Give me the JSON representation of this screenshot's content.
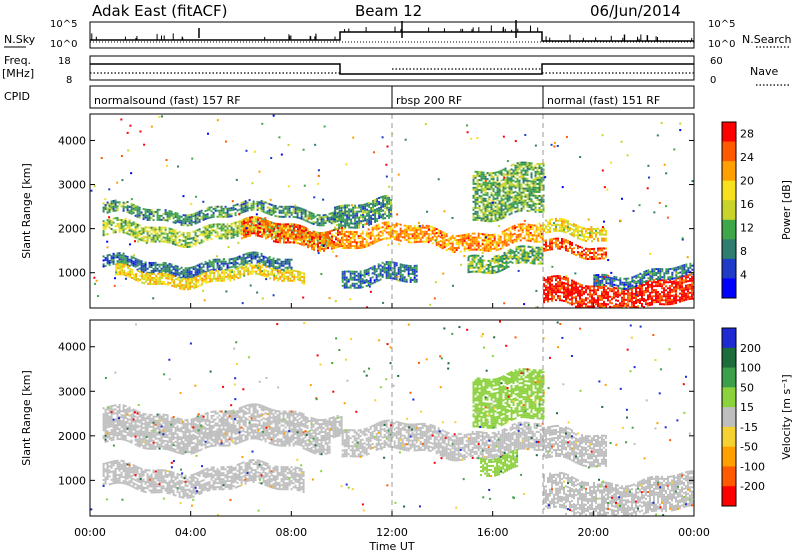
{
  "header": {
    "station": "Adak East (fitACF)",
    "beam": "Beam 12",
    "date": "06/Jun/2014"
  },
  "strip_labels": {
    "nsky": "N.Sky",
    "nsearch": "N.Search",
    "freq": "Freq.",
    "freq_unit": "[MHz]",
    "nave": "Nave",
    "cpid": "CPID"
  },
  "strip_ticks": {
    "noise_left": [
      "10^5",
      "10^0"
    ],
    "noise_right": [
      "10^5",
      "10^0"
    ],
    "freq_left": [
      "18",
      "8"
    ],
    "nave_right": [
      "60",
      "0"
    ]
  },
  "modes": [
    {
      "label": "normalsound (fast) 157 RF",
      "start_hour": 0,
      "end_hour": 12
    },
    {
      "label": "rbsp 200 RF",
      "start_hour": 12,
      "end_hour": 18
    },
    {
      "label": "normal (fast) 151 RF",
      "start_hour": 18,
      "end_hour": 24
    }
  ],
  "chart_data": [
    {
      "type": "heatmap",
      "name": "power",
      "ylabel": "Slant Range [km]",
      "xlabel": "Time UT",
      "xlim": [
        0,
        24
      ],
      "ylim": [
        200,
        4600
      ],
      "x_ticks": [
        "00:00",
        "04:00",
        "08:00",
        "12:00",
        "16:00",
        "20:00",
        "00:00"
      ],
      "y_ticks": [
        1000,
        2000,
        3000,
        4000
      ],
      "colorbar": {
        "label": "Power [dB]",
        "ticks": [
          4,
          8,
          12,
          16,
          20,
          24,
          28
        ],
        "range": [
          0,
          30
        ],
        "colors": [
          "#0000ff",
          "#1e3cc8",
          "#2e7d6e",
          "#3fa64a",
          "#c8d42a",
          "#f7e01e",
          "#ffa000",
          "#ff5a00",
          "#ff0000"
        ]
      },
      "echo_bands": [
        {
          "t0": 0.5,
          "t1": 10.0,
          "r0": 2250,
          "r1": 2500,
          "power": 10
        },
        {
          "t0": 0.5,
          "t1": 9.5,
          "r0": 1750,
          "r1": 2100,
          "power": 14
        },
        {
          "t0": 6.0,
          "t1": 10.0,
          "r0": 1650,
          "r1": 2100,
          "power": 24
        },
        {
          "t0": 0.5,
          "t1": 8.0,
          "r0": 1050,
          "r1": 1300,
          "power": 8
        },
        {
          "t0": 1.0,
          "t1": 8.5,
          "r0": 800,
          "r1": 1050,
          "power": 18
        },
        {
          "t0": 9.7,
          "t1": 12.0,
          "r0": 2100,
          "r1": 2600,
          "power": 10
        },
        {
          "t0": 10.0,
          "t1": 18.0,
          "r0": 1600,
          "r1": 2000,
          "power": 22
        },
        {
          "t0": 10.0,
          "t1": 13.0,
          "r0": 700,
          "r1": 1100,
          "power": 8
        },
        {
          "t0": 15.0,
          "t1": 18.0,
          "r0": 1100,
          "r1": 1500,
          "power": 12
        },
        {
          "t0": 15.2,
          "t1": 18.0,
          "r0": 2300,
          "r1": 3400,
          "power": 12
        },
        {
          "t0": 18.0,
          "t1": 20.5,
          "r0": 1800,
          "r1": 2100,
          "power": 18
        },
        {
          "t0": 18.0,
          "t1": 20.5,
          "r0": 1400,
          "r1": 1650,
          "power": 26
        },
        {
          "t0": 18.0,
          "t1": 24.0,
          "r0": 250,
          "r1": 800,
          "power": 28
        },
        {
          "t0": 20.0,
          "t1": 24.0,
          "r0": 800,
          "r1": 1050,
          "power": 8
        }
      ]
    },
    {
      "type": "heatmap",
      "name": "velocity",
      "ylabel": "Slant Range [km]",
      "xlabel": "Time UT",
      "xlim": [
        0,
        24
      ],
      "ylim": [
        200,
        4600
      ],
      "x_ticks": [
        "00:00",
        "04:00",
        "08:00",
        "12:00",
        "16:00",
        "20:00",
        "00:00"
      ],
      "y_ticks": [
        1000,
        2000,
        3000,
        4000
      ],
      "colorbar": {
        "label": "Velocity [m s⁻¹]",
        "ticks": [
          200,
          100,
          50,
          15,
          -15,
          -50,
          -100,
          -200
        ],
        "colors": [
          "#1e2ad2",
          "#1e6b3c",
          "#3ca04a",
          "#8cd23c",
          "#bebebe",
          "#f5d232",
          "#ffa000",
          "#ff5a00",
          "#ff0000"
        ]
      },
      "echo_bands": [
        {
          "t0": 0.5,
          "t1": 10.0,
          "r0": 2100,
          "r1": 2550,
          "velocity": 0
        },
        {
          "t0": 0.5,
          "t1": 9.5,
          "r0": 1750,
          "r1": 2100,
          "velocity": 0
        },
        {
          "t0": 0.5,
          "t1": 8.5,
          "r0": 800,
          "r1": 1300,
          "velocity": 0
        },
        {
          "t0": 10.0,
          "t1": 18.0,
          "r0": 1600,
          "r1": 2200,
          "velocity": 0
        },
        {
          "t0": 15.2,
          "t1": 18.0,
          "r0": 2300,
          "r1": 3400,
          "velocity": 30
        },
        {
          "t0": 15.5,
          "t1": 17.0,
          "r0": 1200,
          "r1": 1600,
          "velocity": 30
        },
        {
          "t0": 18.0,
          "t1": 20.5,
          "r0": 1400,
          "r1": 2100,
          "velocity": 0
        },
        {
          "t0": 18.0,
          "t1": 24.0,
          "r0": 250,
          "r1": 1050,
          "velocity": 0
        }
      ]
    }
  ]
}
